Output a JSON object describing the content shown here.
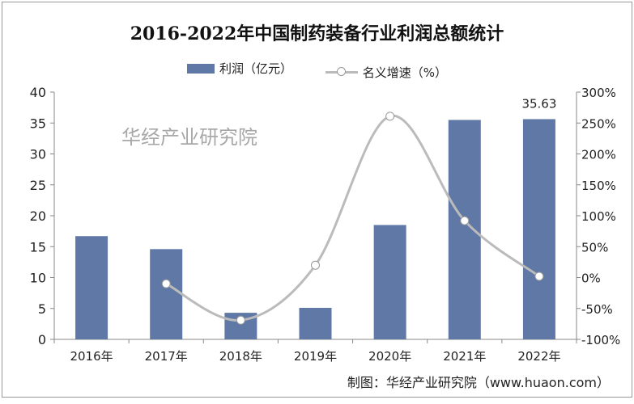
{
  "chart_data": {
    "type": "bar",
    "title": "2016-2022年中国制药装备行业利润总额统计",
    "categories": [
      "2016年",
      "2017年",
      "2018年",
      "2019年",
      "2020年",
      "2021年",
      "2022年"
    ],
    "series": [
      {
        "name": "利润（亿元）",
        "type": "bar",
        "axis": "left",
        "values": [
          16.7,
          14.6,
          4.3,
          5.1,
          18.5,
          35.5,
          35.63
        ],
        "color": "#6078a6"
      },
      {
        "name": "名义增速（%）",
        "type": "line",
        "axis": "right",
        "values": [
          null,
          -10,
          -69,
          20,
          261,
          92,
          2
        ],
        "color": "#bbbbbb"
      }
    ],
    "data_labels": [
      {
        "category": "2022年",
        "text": "35.63"
      }
    ],
    "y_left": {
      "ylim": [
        0,
        40
      ],
      "ticks": [
        "0",
        "5",
        "10",
        "15",
        "20",
        "25",
        "30",
        "35",
        "40"
      ]
    },
    "y_right": {
      "ylim": [
        -100,
        300
      ],
      "ticks": [
        "-100%",
        "-50%",
        "0%",
        "50%",
        "100%",
        "150%",
        "200%",
        "250%",
        "300%"
      ]
    },
    "legend": "top",
    "grid": false
  },
  "source": "制图：华经产业研究院（www.huaon.com）",
  "watermark": "华经产业研究院"
}
